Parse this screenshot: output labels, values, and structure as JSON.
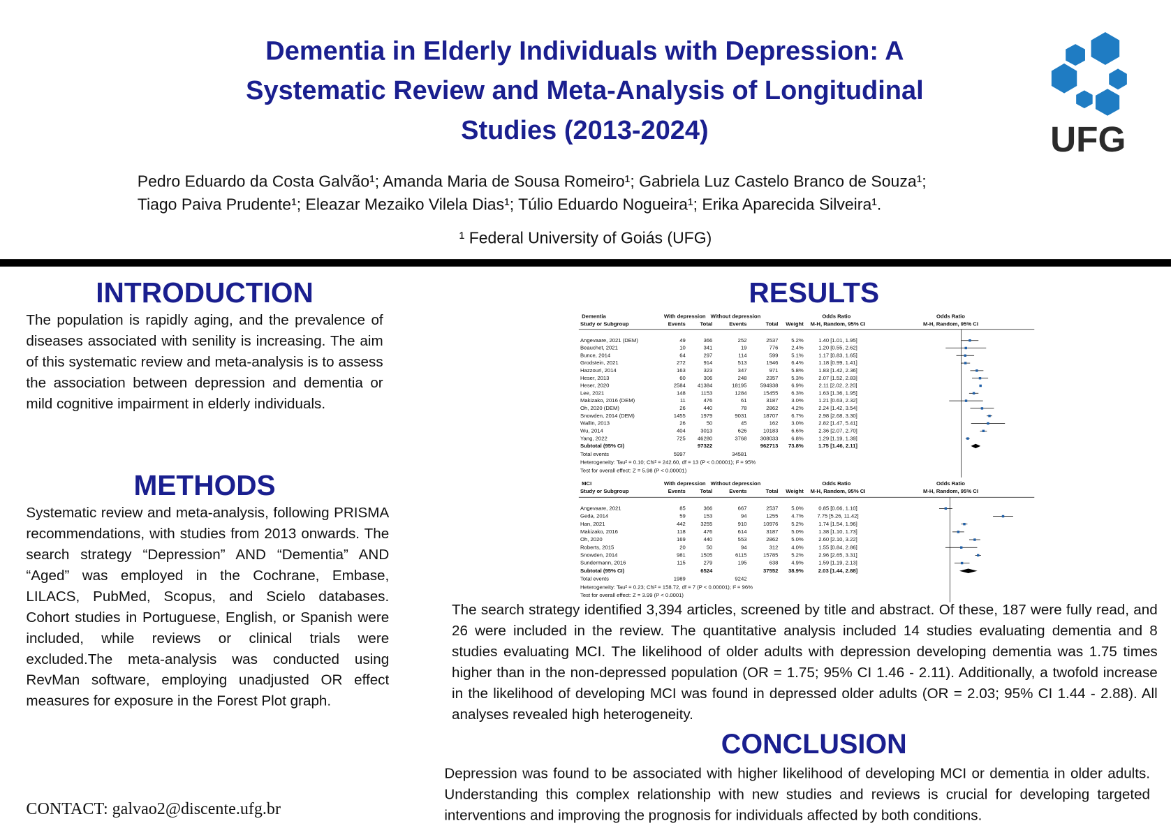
{
  "header": {
    "title_lines": [
      "Dementia in Elderly Individuals with Depression: A",
      "Systematic Review and Meta-Analysis of Longitudinal",
      "Studies (2013-2024)"
    ],
    "authors_lines": [
      "Pedro Eduardo da Costa Galvão¹; Amanda Maria de Sousa Romeiro¹; Gabriela Luz Castelo Branco de Souza¹;",
      "Tiago Paiva Prudente¹; Eleazar Mezaiko Vilela Dias¹; Túlio Eduardo Nogueira¹; Erika Aparecida Silveira¹."
    ],
    "affiliation": "¹ Federal University of Goiás (UFG)",
    "logo_text": "UFG"
  },
  "introduction": {
    "heading": "INTRODUCTION",
    "text": "The population is rapidly aging, and the prevalence of diseases associated with senility is increasing. The aim of this systematic review and meta-analysis is to assess the association between depression and dementia or mild cognitive impairment in elderly individuals."
  },
  "methods": {
    "heading": "METHODS",
    "text": "Systematic review and meta-analysis, following PRISMA recommendations, with studies from 2013 onwards. The search strategy “Depression” AND “Dementia” AND “Aged” was employed in the Cochrane, Embase, LILACS, PubMed, Scopus, and Scielo databases. Cohort studies in Portuguese, English, or Spanish were included, while reviews or clinical trials were excluded.The meta-analysis was conducted using RevMan software, employing unadjusted OR effect measures for exposure in the Forest Plot graph."
  },
  "contact": "CONTACT: galvao2@discente.ufg.br",
  "results": {
    "heading": "RESULTS",
    "forest_plots": [
      {
        "group": "Dementia",
        "with": "With depression",
        "without": "Without depression",
        "or_head": "Odds Ratio",
        "plot_head": "Odds Ratio",
        "columns": [
          "Study or Subgroup",
          "Events",
          "Total",
          "Events",
          "Total",
          "Weight",
          "M-H, Random, 95% CI",
          "M-H, Random, 95% CI"
        ],
        "rows": [
          [
            "Angevaare, 2021 (DEM)",
            "49",
            "366",
            "252",
            "2537",
            "5.2%",
            "1.40 [1.01, 1.95]"
          ],
          [
            "Beauchet, 2021",
            "10",
            "341",
            "19",
            "776",
            "2.4%",
            "1.20 [0.55, 2.62]"
          ],
          [
            "Bunce, 2014",
            "64",
            "297",
            "114",
            "599",
            "5.1%",
            "1.17 [0.83, 1.65]"
          ],
          [
            "Grodstein, 2021",
            "272",
            "914",
            "513",
            "1946",
            "6.4%",
            "1.18 [0.99, 1.41]"
          ],
          [
            "Hazzouri, 2014",
            "163",
            "323",
            "347",
            "971",
            "5.8%",
            "1.83 [1.42, 2.36]"
          ],
          [
            "Heser, 2013",
            "60",
            "306",
            "248",
            "2357",
            "5.3%",
            "2.07 [1.52, 2.83]"
          ],
          [
            "Heser, 2020",
            "2584",
            "41384",
            "18195",
            "594938",
            "6.9%",
            "2.11 [2.02, 2.20]"
          ],
          [
            "Lee, 2021",
            "148",
            "1153",
            "1284",
            "15455",
            "6.3%",
            "1.63 [1.36, 1.95]"
          ],
          [
            "Makizako, 2016 (DEM)",
            "11",
            "476",
            "61",
            "3187",
            "3.0%",
            "1.21 [0.63, 2.32]"
          ],
          [
            "Oh, 2020 (DEM)",
            "26",
            "440",
            "78",
            "2862",
            "4.2%",
            "2.24 [1.42, 3.54]"
          ],
          [
            "Snowden, 2014 (DEM)",
            "1455",
            "1979",
            "9031",
            "18707",
            "6.7%",
            "2.98 [2.68, 3.30]"
          ],
          [
            "Wallin, 2013",
            "26",
            "50",
            "45",
            "162",
            "3.0%",
            "2.82 [1.47, 5.41]"
          ],
          [
            "Wu, 2014",
            "404",
            "3013",
            "626",
            "10183",
            "6.6%",
            "2.36 [2.07, 2.70]"
          ],
          [
            "Yang, 2022",
            "725",
            "46280",
            "3768",
            "308033",
            "6.8%",
            "1.29 [1.19, 1.39]"
          ]
        ],
        "subtotal": [
          "Subtotal (95% CI)",
          null,
          "97322",
          null,
          "962713",
          "73.8%",
          "1.75 [1.46, 2.11]"
        ],
        "total_events": [
          "Total events",
          "5997",
          null,
          "34581"
        ],
        "heterogeneity": "Heterogeneity: Tau² = 0.10; Chi² = 242.60, df = 13 (P < 0.00001); I² = 95%",
        "overall": "Test for overall effect: Z = 5.98 (P < 0.00001)"
      },
      {
        "group": "MCI",
        "with": "With depression",
        "without": "Without depression",
        "or_head": "Odds Ratio",
        "plot_head": "Odds Ratio",
        "columns": [
          "Study or Subgroup",
          "Events",
          "Total",
          "Events",
          "Total",
          "Weight",
          "M-H, Random, 95% CI",
          "M-H, Random, 95% CI"
        ],
        "rows": [
          [
            "Angevaare, 2021",
            "85",
            "366",
            "667",
            "2537",
            "5.0%",
            "0.85 [0.66, 1.10]"
          ],
          [
            "Geda, 2014",
            "59",
            "153",
            "94",
            "1255",
            "4.7%",
            "7.75 [5.26, 11.42]"
          ],
          [
            "Han, 2021",
            "442",
            "3255",
            "910",
            "10976",
            "5.2%",
            "1.74 [1.54, 1.96]"
          ],
          [
            "Makizako, 2016",
            "118",
            "476",
            "614",
            "3187",
            "5.0%",
            "1.38 [1.10, 1.73]"
          ],
          [
            "Oh, 2020",
            "169",
            "440",
            "553",
            "2862",
            "5.0%",
            "2.60 [2.10, 3.22]"
          ],
          [
            "Roberts, 2015",
            "20",
            "50",
            "94",
            "312",
            "4.0%",
            "1.55 [0.84, 2.86]"
          ],
          [
            "Snowden, 2014",
            "981",
            "1505",
            "6115",
            "15785",
            "5.2%",
            "2.96 [2.65, 3.31]"
          ],
          [
            "Sundermann, 2016",
            "115",
            "279",
            "195",
            "638",
            "4.9%",
            "1.59 [1.19, 2.13]"
          ]
        ],
        "subtotal": [
          "Subtotal (95% CI)",
          null,
          "6524",
          null,
          "37552",
          "38.9%",
          "2.03 [1.44, 2.88]"
        ],
        "total_events": [
          "Total events",
          "1989",
          null,
          "9242"
        ],
        "heterogeneity": "Heterogeneity: Tau² = 0.23; Chi² = 158.72, df = 7 (P < 0.00001); I² = 96%",
        "overall": "Test for overall effect: Z = 3.99 (P < 0.0001)"
      }
    ],
    "text": "The search strategy identified 3,394 articles, screened by title and abstract. Of these, 187 were fully read, and 26 were included in the review.  The quantitative analysis included 14 studies evaluating dementia and 8 studies evaluating MCI. The likelihood of older adults with depression developing dementia was 1.75 times higher than in the non-depressed population (OR = 1.75; 95% CI 1.46 - 2.11). Additionally, a twofold increase in the likelihood of developing MCI was found in depressed older adults (OR = 2.03; 95% CI 1.44 - 2.88). All analyses revealed high heterogeneity."
  },
  "conclusion": {
    "heading": "CONCLUSION",
    "text": "Depression was found to be associated with higher likelihood of developing MCI or dementia in older adults. Understanding this complex relationship with new studies and reviews is crucial for developing targeted interventions and improving the prognosis for individuals affected by both conditions."
  }
}
